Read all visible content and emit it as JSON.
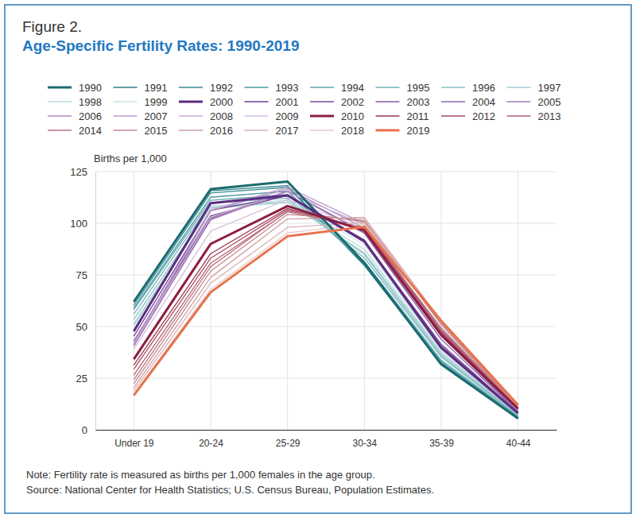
{
  "chart_data": {
    "type": "line",
    "figure_label": "Figure 2.",
    "title": "Age-Specific Fertility Rates: 1990-2019",
    "y_label": "Births per 1,000",
    "note": "Note: Fertility rate is measured as births per 1,000 females in the age group.",
    "source": "Source: National Center for Health Statistics; U.S. Census Bureau, Population Estimates.",
    "categories": [
      "Under 19",
      "20-24",
      "25-29",
      "30-34",
      "35-39",
      "40-44"
    ],
    "ylim": [
      0,
      125
    ],
    "yticks": [
      0,
      25,
      50,
      75,
      100,
      125
    ],
    "grid": true,
    "legend": "top",
    "series": [
      {
        "name": "1990",
        "color": "#1b6b6f",
        "line_style": "thick",
        "values": [
          62,
          116.5,
          120.2,
          80.8,
          31.7,
          5.5
        ]
      },
      {
        "name": "1991",
        "color": "#2a7f86",
        "values": [
          62,
          115.7,
          118.2,
          79.5,
          32.0,
          5.5
        ]
      },
      {
        "name": "1992",
        "color": "#3a8c95",
        "values": [
          60.3,
          114.7,
          117.4,
          80.2,
          32.5,
          5.9
        ]
      },
      {
        "name": "1993",
        "color": "#4a98a2",
        "values": [
          59.0,
          112.6,
          115.5,
          80.8,
          32.9,
          6.1
        ]
      },
      {
        "name": "1994",
        "color": "#5ea5ae",
        "values": [
          58.2,
          111.1,
          113.9,
          81.5,
          33.7,
          6.4
        ]
      },
      {
        "name": "1995",
        "color": "#74b3ba",
        "values": [
          56.0,
          109.8,
          112.2,
          83.3,
          35.3,
          6.8
        ]
      },
      {
        "name": "1996",
        "color": "#8ac0c6",
        "values": [
          53.5,
          107.8,
          111.1,
          84.9,
          36.1,
          7.1
        ]
      },
      {
        "name": "1997",
        "color": "#a0ccd1",
        "values": [
          51.3,
          107.3,
          110.1,
          85.7,
          36.9,
          7.5
        ]
      },
      {
        "name": "1998",
        "color": "#b6d8dc",
        "values": [
          50.3,
          108.4,
          110.2,
          87.4,
          37.4,
          7.7
        ]
      },
      {
        "name": "1999",
        "color": "#cbe3e6",
        "values": [
          48.8,
          107.9,
          111.2,
          89.6,
          38.3,
          7.8
        ]
      },
      {
        "name": "2000",
        "color": "#5c2d82",
        "line_style": "thick",
        "values": [
          47.7,
          109.7,
          113.5,
          91.2,
          39.7,
          8.0
        ]
      },
      {
        "name": "2001",
        "color": "#6e3c8e",
        "values": [
          45.3,
          106.2,
          113.4,
          91.9,
          40.6,
          8.1
        ]
      },
      {
        "name": "2002",
        "color": "#7b4b98",
        "values": [
          43.0,
          103.6,
          113.6,
          91.5,
          41.4,
          8.3
        ]
      },
      {
        "name": "2003",
        "color": "#8859a2",
        "values": [
          41.6,
          102.6,
          115.6,
          95.1,
          43.8,
          8.7
        ]
      },
      {
        "name": "2004",
        "color": "#9569ac",
        "values": [
          41.1,
          101.7,
          115.5,
          95.3,
          45.4,
          8.9
        ]
      },
      {
        "name": "2005",
        "color": "#a279b6",
        "values": [
          40.5,
          102.2,
          115.5,
          95.8,
          46.3,
          9.1
        ]
      },
      {
        "name": "2006",
        "color": "#ae89c0",
        "values": [
          41.9,
          105.9,
          116.7,
          97.7,
          47.3,
          9.4
        ]
      },
      {
        "name": "2007",
        "color": "#bb9aca",
        "values": [
          42.5,
          106.3,
          117.5,
          99.9,
          47.5,
          9.5
        ]
      },
      {
        "name": "2008",
        "color": "#c8acd4",
        "values": [
          41.5,
          103.0,
          115.1,
          99.3,
          46.8,
          9.9
        ]
      },
      {
        "name": "2009",
        "color": "#d6bfde",
        "values": [
          39.1,
          96.2,
          111.5,
          97.5,
          46.1,
          10.0
        ]
      },
      {
        "name": "2010",
        "color": "#8c1d40",
        "line_style": "thick",
        "values": [
          34.2,
          90.0,
          108.3,
          96.5,
          45.9,
          10.2
        ]
      },
      {
        "name": "2011",
        "color": "#9a3450",
        "values": [
          31.3,
          85.3,
          107.2,
          96.5,
          47.2,
          10.3
        ]
      },
      {
        "name": "2012",
        "color": "#a64a60",
        "values": [
          29.4,
          83.1,
          106.5,
          97.3,
          48.3,
          10.4
        ]
      },
      {
        "name": "2013",
        "color": "#b16070",
        "values": [
          26.5,
          80.7,
          105.5,
          98.0,
          49.3,
          10.4
        ]
      },
      {
        "name": "2014",
        "color": "#bb7580",
        "values": [
          24.2,
          79.0,
          105.8,
          100.8,
          51.0,
          10.6
        ]
      },
      {
        "name": "2015",
        "color": "#c58a92",
        "values": [
          22.3,
          76.8,
          104.3,
          101.5,
          51.8,
          11.0
        ]
      },
      {
        "name": "2016",
        "color": "#cf9fa5",
        "values": [
          20.3,
          73.8,
          102.1,
          102.7,
          52.7,
          11.4
        ]
      },
      {
        "name": "2017",
        "color": "#d9b4b8",
        "values": [
          18.8,
          71.0,
          98.0,
          100.3,
          52.3,
          11.6
        ]
      },
      {
        "name": "2018",
        "color": "#e3c8cb",
        "values": [
          17.4,
          68.0,
          95.3,
          99.7,
          52.6,
          11.8
        ]
      },
      {
        "name": "2019",
        "color": "#e8714a",
        "line_style": "thick",
        "values": [
          16.7,
          66.6,
          93.7,
          98.3,
          52.8,
          12.0
        ]
      }
    ]
  }
}
